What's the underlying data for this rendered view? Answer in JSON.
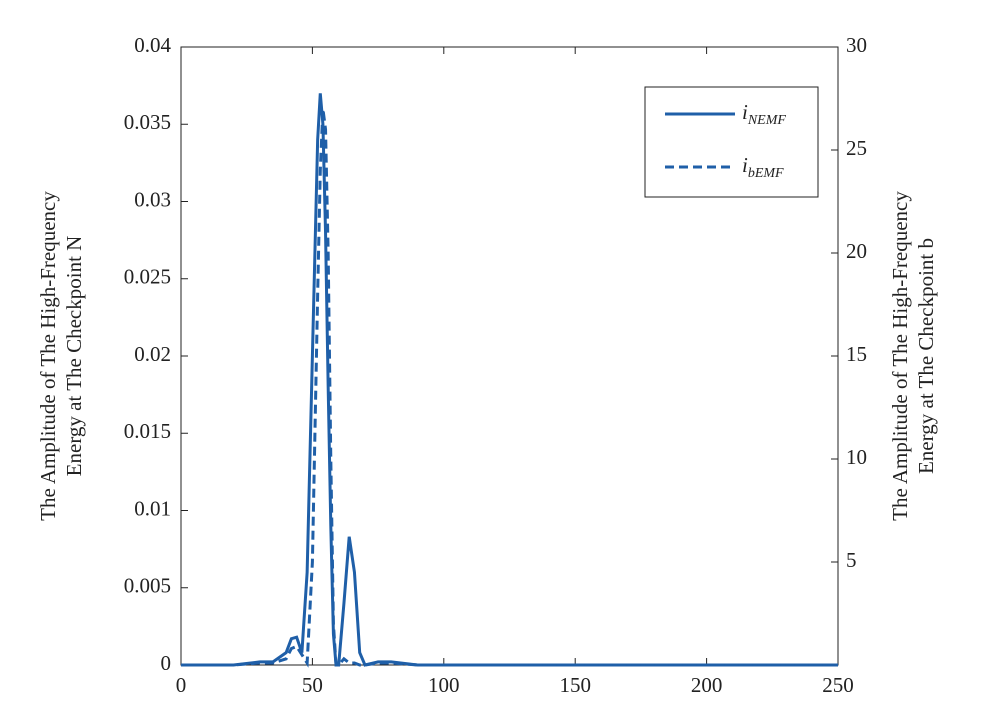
{
  "chart_data": {
    "type": "line",
    "y_label": [
      "The Amplitude of The High-Frequency",
      "Energy at The Checkpoint N"
    ],
    "y2_label": [
      "The Amplitude of The High-Frequency",
      "Energy at The Checkpoint b"
    ],
    "x": [
      0,
      20,
      30,
      35,
      40,
      42,
      44,
      46,
      48,
      50,
      52,
      53,
      54,
      55,
      56,
      57,
      58,
      59,
      60,
      62,
      64,
      66,
      68,
      70,
      75,
      80,
      90,
      100,
      150,
      200,
      250
    ],
    "series": [
      {
        "name": "iNEMF",
        "color": "#1f5fa8",
        "dash": "solid",
        "values": [
          0,
          0,
          0.0002,
          0.0002,
          0.0008,
          0.0017,
          0.0018,
          0.0008,
          0.006,
          0.02,
          0.034,
          0.037,
          0.035,
          0.028,
          0.018,
          0.009,
          0.002,
          0,
          0,
          0.004,
          0.0083,
          0.006,
          0.0008,
          0,
          0.0002,
          0.0002,
          0,
          0,
          0,
          0,
          0
        ]
      },
      {
        "name": "ibEMF",
        "color": "#1f5fa8",
        "dash": "dashed",
        "axis": "y2",
        "values": [
          0,
          0,
          0.1,
          0.1,
          0.3,
          0.8,
          0.9,
          0.5,
          0.1,
          5,
          18,
          24,
          27,
          26,
          20,
          10,
          2,
          0,
          0,
          0.3,
          0.1,
          0.1,
          0,
          0,
          0.1,
          0.1,
          0,
          0,
          0,
          0,
          0
        ]
      }
    ],
    "xlim": [
      0,
      250
    ],
    "xticks": [
      0,
      50,
      100,
      150,
      200,
      250
    ],
    "ylim": [
      0,
      0.04
    ],
    "yticks": [
      0,
      0.005,
      0.01,
      0.015,
      0.02,
      0.025,
      0.03,
      0.035,
      0.04
    ],
    "y2lim": [
      0,
      30
    ],
    "y2ticks": [
      5,
      10,
      15,
      20,
      25,
      30
    ],
    "legend": "upper right"
  }
}
